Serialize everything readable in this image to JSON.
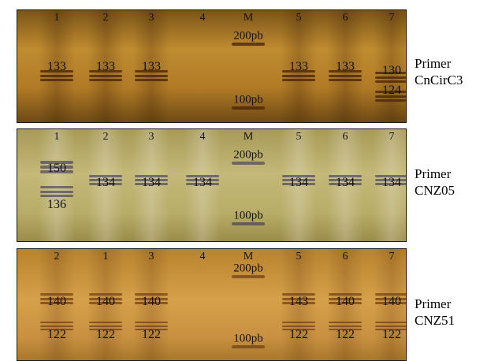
{
  "colors": {
    "text_dark": "#111111",
    "text_light": "#ffffff",
    "gel_A_bg": "linear-gradient(180deg,#7a5418 0%,#c08c30 35%,#b07a26 70%,#6e4a14 100%)",
    "gel_B_bg": "linear-gradient(180deg,#a89a58 0%,#c4b878 40%,#b8ac68 75%,#9a8c4a 100%)",
    "gel_C_bg": "linear-gradient(180deg,#b8822e 0%,#d6a04a 45%,#c89040 80%,#a8782c 100%)"
  },
  "gels": [
    {
      "primer_line1": "Primer",
      "primer_line2": "CnCirC3",
      "style": "gel_A_bg",
      "label_color": "text_dark",
      "lanes": [
        {
          "label": "1",
          "bands": [
            "133"
          ]
        },
        {
          "label": "2",
          "bands": [
            "133"
          ]
        },
        {
          "label": "3",
          "bands": [
            "133"
          ]
        },
        {
          "label": "4",
          "bands": []
        },
        {
          "label": "M",
          "bands": [
            "200pb",
            "100pb"
          ]
        },
        {
          "label": "5",
          "bands": [
            "133"
          ]
        },
        {
          "label": "6",
          "bands": [
            "133"
          ]
        },
        {
          "label": "7",
          "bands": [
            "130",
            "124"
          ]
        }
      ]
    },
    {
      "primer_line1": "Primer",
      "primer_line2": "CNZ05",
      "style": "gel_B_bg",
      "label_color": "text_dark",
      "lanes": [
        {
          "label": "1",
          "bands": [
            "150",
            "136"
          ]
        },
        {
          "label": "2",
          "bands": [
            "134"
          ]
        },
        {
          "label": "3",
          "bands": [
            "134"
          ]
        },
        {
          "label": "4",
          "bands": [
            "134"
          ]
        },
        {
          "label": "M",
          "bands": [
            "200pb",
            "100pb"
          ]
        },
        {
          "label": "5",
          "bands": [
            "134"
          ]
        },
        {
          "label": "6",
          "bands": [
            "134"
          ]
        },
        {
          "label": "7",
          "bands": [
            "134"
          ]
        }
      ]
    },
    {
      "primer_line1": "Primer",
      "primer_line2": "CNZ51",
      "style": "gel_C_bg",
      "label_color": "text_dark",
      "lanes": [
        {
          "label": "2",
          "bands": [
            "140",
            "122"
          ]
        },
        {
          "label": "1",
          "bands": [
            "140",
            "122"
          ]
        },
        {
          "label": "3",
          "bands": [
            "140",
            "122"
          ]
        },
        {
          "label": "4",
          "bands": []
        },
        {
          "label": "M",
          "bands": [
            "200pb",
            "100pb"
          ]
        },
        {
          "label": "5",
          "bands": [
            "143",
            "122"
          ]
        },
        {
          "label": "6",
          "bands": [
            "140",
            "122"
          ]
        },
        {
          "label": "7",
          "bands": [
            "140",
            "122"
          ]
        }
      ]
    }
  ]
}
